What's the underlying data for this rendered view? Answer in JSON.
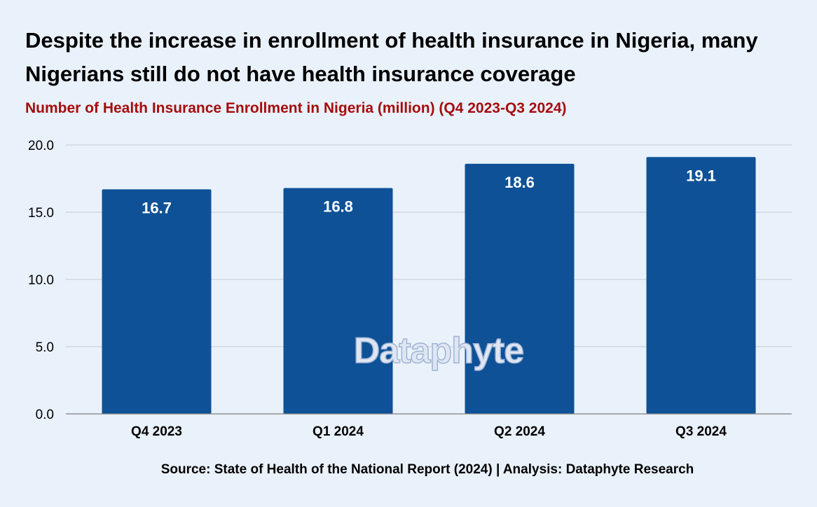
{
  "title": "Despite the increase in enrollment of health insurance in Nigeria, many Nigerians still do not have health insurance coverage",
  "subtitle": "Number of Health Insurance Enrollment in Nigeria (million) (Q4 2023-Q3 2024)",
  "source": "Source: State of Health of the National Report (2024) | Analysis: Dataphyte Research",
  "watermark": "Dataphyte",
  "colors": {
    "background": "#e9f1fb",
    "bar": "#0e5196",
    "subtitle": "#a50d0d",
    "grid": "#c6ccd3"
  },
  "chart_data": {
    "type": "bar",
    "title": "Number of Health Insurance Enrollment in Nigeria (million) (Q4 2023-Q3 2024)",
    "categories": [
      "Q4 2023",
      "Q1 2024",
      "Q2 2024",
      "Q3 2024"
    ],
    "values": [
      16.7,
      16.8,
      18.6,
      19.1
    ],
    "value_labels": [
      "16.7",
      "16.8",
      "18.6",
      "19.1"
    ],
    "ylim": [
      0,
      20
    ],
    "yticks": [
      "0.0",
      "5.0",
      "10.0",
      "15.0",
      "20.0"
    ],
    "grid": true,
    "legend": "none"
  }
}
